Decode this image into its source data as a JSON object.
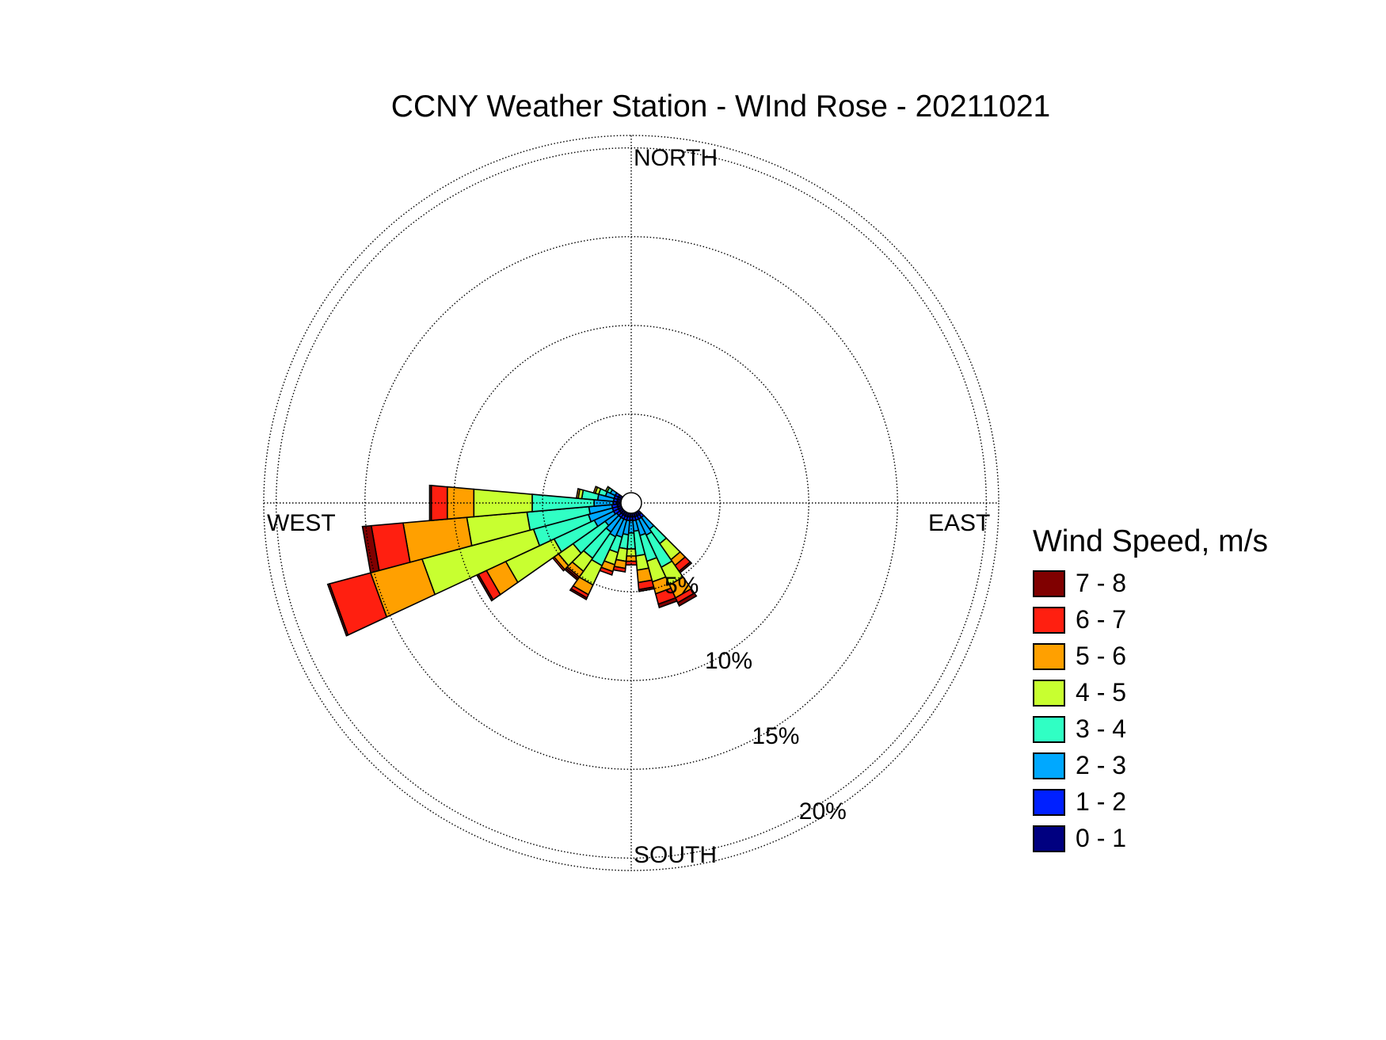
{
  "chart_data": {
    "type": "wind-rose",
    "title": "CCNY Weather Station - WInd Rose - 20211021",
    "direction_labels": {
      "north": "NORTH",
      "east": "EAST",
      "south": "SOUTH",
      "west": "WEST"
    },
    "radial_unit": "%",
    "radial_ticks": [
      5,
      10,
      15,
      20
    ],
    "radial_tick_labels": [
      "5%",
      "10%",
      "15%",
      "20%"
    ],
    "rmax": 20.7,
    "grid": true,
    "legend": {
      "title": "Wind Speed, m/s",
      "position": "right",
      "entries": [
        {
          "label": "7 - 8",
          "color": "#800000"
        },
        {
          "label": "6 - 7",
          "color": "#ff1f10"
        },
        {
          "label": "5 - 6",
          "color": "#ffa000"
        },
        {
          "label": "4 - 5",
          "color": "#c8ff30"
        },
        {
          "label": "3 - 4",
          "color": "#30ffc4"
        },
        {
          "label": "2 - 3",
          "color": "#00a8ff"
        },
        {
          "label": "1 - 2",
          "color": "#0020ff"
        },
        {
          "label": "0 - 1",
          "color": "#000080"
        }
      ]
    },
    "speed_bins": [
      "0 - 1",
      "1 - 2",
      "2 - 3",
      "3 - 4",
      "4 - 5",
      "5 - 6",
      "6 - 7",
      "7 - 8"
    ],
    "bin_colors": [
      "#000080",
      "#0020ff",
      "#00a8ff",
      "#30ffc4",
      "#c8ff30",
      "#ffa000",
      "#ff1f10",
      "#800000"
    ],
    "sector_width_deg": 10,
    "sectors": [
      {
        "direction_deg": 140,
        "cumulative_percent": [
          0.8,
          1.0,
          1.8,
          2.8,
          3.9,
          4.3,
          4.7,
          4.8
        ]
      },
      {
        "direction_deg": 150,
        "cumulative_percent": [
          0.8,
          1.0,
          2.0,
          4.0,
          5.1,
          5.9,
          6.2,
          6.4
        ]
      },
      {
        "direction_deg": 160,
        "cumulative_percent": [
          0.8,
          1.0,
          1.9,
          3.4,
          4.6,
          5.3,
          5.9,
          6.1
        ]
      },
      {
        "direction_deg": 170,
        "cumulative_percent": [
          0.8,
          1.0,
          1.6,
          3.0,
          3.8,
          4.5,
          4.9,
          5.0
        ]
      },
      {
        "direction_deg": 180,
        "cumulative_percent": [
          0.8,
          1.0,
          1.7,
          2.6,
          3.0,
          3.3,
          3.5,
          3.5
        ]
      },
      {
        "direction_deg": 190,
        "cumulative_percent": [
          0.8,
          1.0,
          1.8,
          2.6,
          3.3,
          3.7,
          3.9,
          3.9
        ]
      },
      {
        "direction_deg": 200,
        "cumulative_percent": [
          0.8,
          1.0,
          2.0,
          2.9,
          3.6,
          4.0,
          4.2,
          4.2
        ]
      },
      {
        "direction_deg": 210,
        "cumulative_percent": [
          0.8,
          1.0,
          2.1,
          3.9,
          5.1,
          5.7,
          5.9,
          6.0
        ]
      },
      {
        "direction_deg": 220,
        "cumulative_percent": [
          0.8,
          1.0,
          2.0,
          3.8,
          4.7,
          5.1,
          5.2,
          5.3
        ]
      },
      {
        "direction_deg": 230,
        "cumulative_percent": [
          0.8,
          1.0,
          1.8,
          4.0,
          5.0,
          5.3,
          5.4,
          5.4
        ]
      },
      {
        "direction_deg": 240,
        "cumulative_percent": [
          0.8,
          1.1,
          2.3,
          4.8,
          7.8,
          9.0,
          9.5,
          9.6
        ]
      },
      {
        "direction_deg": 250,
        "cumulative_percent": [
          0.8,
          1.1,
          2.5,
          5.7,
          12.2,
          15.2,
          17.6,
          17.7
        ]
      },
      {
        "direction_deg": 260,
        "cumulative_percent": [
          0.8,
          1.1,
          2.4,
          5.9,
          9.3,
          12.9,
          14.7,
          15.2
        ]
      },
      {
        "direction_deg": 270,
        "cumulative_percent": [
          0.8,
          1.0,
          2.1,
          5.6,
          8.9,
          10.4,
          11.3,
          11.4
        ]
      },
      {
        "direction_deg": 280,
        "cumulative_percent": [
          0.8,
          1.0,
          1.9,
          2.8,
          3.0,
          3.1,
          3.1,
          3.1
        ]
      },
      {
        "direction_deg": 290,
        "cumulative_percent": [
          0.8,
          1.0,
          1.5,
          1.9,
          2.1,
          2.2,
          2.2,
          2.2
        ]
      },
      {
        "direction_deg": 300,
        "cumulative_percent": [
          0.8,
          1.0,
          1.3,
          1.5,
          1.6,
          1.6,
          1.6,
          1.6
        ]
      }
    ]
  }
}
